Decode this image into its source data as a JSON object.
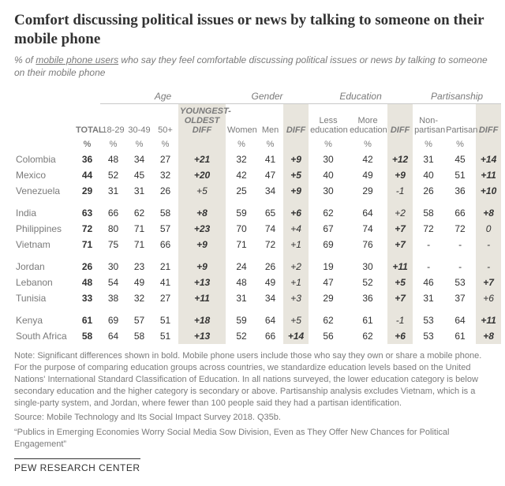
{
  "title": "Comfort discussing political issues or news by talking to someone on their mobile phone",
  "subtitle_pre": "% of ",
  "subtitle_ul": "mobile phone users",
  "subtitle_post": " who say they feel comfortable discussing political issues or news by talking to someone on their mobile phone",
  "groups": {
    "age": "Age",
    "gender": "Gender",
    "edu": "Education",
    "part": "Partisanship"
  },
  "cols": {
    "total": "TOTAL",
    "a1": "18-29",
    "a2": "30-49",
    "a3": "50+",
    "adiff1": "YOUNGEST-",
    "adiff2": "OLDEST",
    "adiff3": "DIFF",
    "g1": "Women",
    "g2": "Men",
    "gdiff": "DIFF",
    "e1a": "Less",
    "e1b": "education",
    "e2a": "More",
    "e2b": "education",
    "ediff": "DIFF",
    "p1a": "Non-",
    "p1b": "partisan",
    "p2": "Partisan",
    "pdiff": "DIFF",
    "pct": "%"
  },
  "rows": [
    [
      {
        "c": "Colombia",
        "t": "36",
        "a1": "48",
        "a2": "34",
        "a3": "27",
        "ad": "+21",
        "adB": true,
        "g1": "32",
        "g2": "41",
        "gd": "+9",
        "gdB": true,
        "e1": "30",
        "e2": "42",
        "ed": "+12",
        "edB": true,
        "p1": "31",
        "p2": "45",
        "pd": "+14",
        "pdB": true
      },
      {
        "c": "Mexico",
        "t": "44",
        "a1": "52",
        "a2": "45",
        "a3": "32",
        "ad": "+20",
        "adB": true,
        "g1": "42",
        "g2": "47",
        "gd": "+5",
        "gdB": true,
        "e1": "40",
        "e2": "49",
        "ed": "+9",
        "edB": true,
        "p1": "40",
        "p2": "51",
        "pd": "+11",
        "pdB": true
      },
      {
        "c": "Venezuela",
        "t": "29",
        "a1": "31",
        "a2": "31",
        "a3": "26",
        "ad": "+5",
        "adB": false,
        "g1": "25",
        "g2": "34",
        "gd": "+9",
        "gdB": true,
        "e1": "30",
        "e2": "29",
        "ed": "-1",
        "edB": false,
        "p1": "26",
        "p2": "36",
        "pd": "+10",
        "pdB": true
      }
    ],
    [
      {
        "c": "India",
        "t": "63",
        "a1": "66",
        "a2": "62",
        "a3": "58",
        "ad": "+8",
        "adB": true,
        "g1": "59",
        "g2": "65",
        "gd": "+6",
        "gdB": true,
        "e1": "62",
        "e2": "64",
        "ed": "+2",
        "edB": false,
        "p1": "58",
        "p2": "66",
        "pd": "+8",
        "pdB": true
      },
      {
        "c": "Philippines",
        "t": "72",
        "a1": "80",
        "a2": "71",
        "a3": "57",
        "ad": "+23",
        "adB": true,
        "g1": "70",
        "g2": "74",
        "gd": "+4",
        "gdB": false,
        "e1": "67",
        "e2": "74",
        "ed": "+7",
        "edB": true,
        "p1": "72",
        "p2": "72",
        "pd": "0",
        "pdB": false
      },
      {
        "c": "Vietnam",
        "t": "71",
        "a1": "75",
        "a2": "71",
        "a3": "66",
        "ad": "+9",
        "adB": true,
        "g1": "71",
        "g2": "72",
        "gd": "+1",
        "gdB": false,
        "e1": "69",
        "e2": "76",
        "ed": "+7",
        "edB": true,
        "p1": "-",
        "p2": "-",
        "pd": "-",
        "pdB": false
      }
    ],
    [
      {
        "c": "Jordan",
        "t": "26",
        "a1": "30",
        "a2": "23",
        "a3": "21",
        "ad": "+9",
        "adB": true,
        "g1": "24",
        "g2": "26",
        "gd": "+2",
        "gdB": false,
        "e1": "19",
        "e2": "30",
        "ed": "+11",
        "edB": true,
        "p1": "-",
        "p2": "-",
        "pd": "-",
        "pdB": false
      },
      {
        "c": "Lebanon",
        "t": "48",
        "a1": "54",
        "a2": "49",
        "a3": "41",
        "ad": "+13",
        "adB": true,
        "g1": "48",
        "g2": "49",
        "gd": "+1",
        "gdB": false,
        "e1": "47",
        "e2": "52",
        "ed": "+5",
        "edB": true,
        "p1": "46",
        "p2": "53",
        "pd": "+7",
        "pdB": true
      },
      {
        "c": "Tunisia",
        "t": "33",
        "a1": "38",
        "a2": "32",
        "a3": "27",
        "ad": "+11",
        "adB": true,
        "g1": "31",
        "g2": "34",
        "gd": "+3",
        "gdB": false,
        "e1": "29",
        "e2": "36",
        "ed": "+7",
        "edB": true,
        "p1": "31",
        "p2": "37",
        "pd": "+6",
        "pdB": false
      }
    ],
    [
      {
        "c": "Kenya",
        "t": "61",
        "a1": "69",
        "a2": "57",
        "a3": "51",
        "ad": "+18",
        "adB": true,
        "g1": "59",
        "g2": "64",
        "gd": "+5",
        "gdB": false,
        "e1": "62",
        "e2": "61",
        "ed": "-1",
        "edB": false,
        "p1": "53",
        "p2": "64",
        "pd": "+11",
        "pdB": true
      },
      {
        "c": "South Africa",
        "t": "58",
        "a1": "64",
        "a2": "58",
        "a3": "51",
        "ad": "+13",
        "adB": true,
        "g1": "52",
        "g2": "66",
        "gd": "+14",
        "gdB": true,
        "e1": "56",
        "e2": "62",
        "ed": "+6",
        "edB": true,
        "p1": "53",
        "p2": "61",
        "pd": "+8",
        "pdB": true
      }
    ]
  ],
  "note": "Note: Significant differences shown in bold. Mobile phone users include those who say they own or share a mobile phone. For the purpose of comparing education groups across countries, we standardize education levels based on the United Nations' International Standard Classification of Education. In all nations surveyed, the lower education category is below secondary education and the higher category is secondary or above. Partisanship analysis excludes Vietnam, which is a single-party system, and Jordan, where fewer than 100 people said they had a partisan identification.",
  "source": "Source: Mobile Technology and Its Social Impact Survey 2018. Q35b.",
  "pub": "“Publics in Emerging Economies Worry Social Media Sow Division, Even as They Offer New Chances for Political Engagement”",
  "logo": "PEW RESEARCH CENTER",
  "style": {
    "diff_bg": "#e8e5dd",
    "text_muted": "#7a7a7a",
    "title_color": "#333333"
  }
}
